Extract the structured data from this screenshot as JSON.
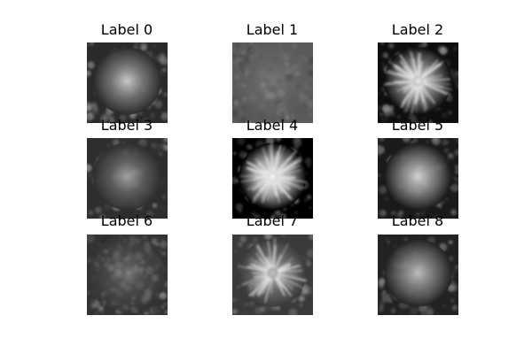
{
  "panels": [
    {
      "label": "Label 0",
      "bg": "#2a2a2a",
      "center": "#cfcfcf",
      "mid": "#7a7a7a",
      "style": "blob"
    },
    {
      "label": "Label 1",
      "bg": "#5a5a5a",
      "center": "#8e8e8e",
      "mid": "#6d6d6d",
      "style": "texture"
    },
    {
      "label": "Label 2",
      "bg": "#0e0e0e",
      "center": "#efefef",
      "mid": "#8a8a8a",
      "style": "flower"
    },
    {
      "label": "Label 3",
      "bg": "#2e2e2e",
      "center": "#a8a8a8",
      "mid": "#606060",
      "style": "blob"
    },
    {
      "label": "Label 4",
      "bg": "#000000",
      "center": "#ffffff",
      "mid": "#b5b5b5",
      "style": "flower"
    },
    {
      "label": "Label 5",
      "bg": "#1a1a1a",
      "center": "#dcdcdc",
      "mid": "#8a8a8a",
      "style": "blob"
    },
    {
      "label": "Label 6",
      "bg": "#333333",
      "center": "#9a9a9a",
      "mid": "#5a5a5a",
      "style": "texture"
    },
    {
      "label": "Label 7",
      "bg": "#3a3a3a",
      "center": "#c8c8c8",
      "mid": "#707070",
      "style": "flower"
    },
    {
      "label": "Label 8",
      "bg": "#222222",
      "center": "#c4c4c4",
      "mid": "#7c7c7c",
      "style": "blob"
    }
  ]
}
